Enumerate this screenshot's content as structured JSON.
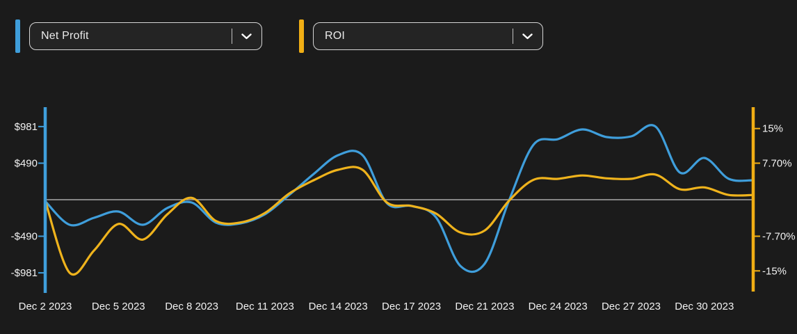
{
  "app": {
    "background": "#1b1b1b"
  },
  "selectors": [
    {
      "label": "Net Profit",
      "accent_color": "#3f9edb"
    },
    {
      "label": "ROI",
      "accent_color": "#f0ae14"
    }
  ],
  "chart_data": {
    "type": "line",
    "x_labels": [
      "Dec 2 2023",
      "Dec 5 2023",
      "Dec 8 2023",
      "Dec 11 2023",
      "Dec 14 2023",
      "Dec 17 2023",
      "Dec 21 2023",
      "Dec 24 2023",
      "Dec 27 2023",
      "Dec 30 2023"
    ],
    "x_label_indices": [
      0,
      3,
      6,
      9,
      12,
      15,
      18,
      21,
      24,
      27
    ],
    "series": [
      {
        "name": "Net Profit",
        "axis": "left",
        "color": "#3f9edb",
        "values": [
          -20,
          -336,
          -243,
          -159,
          -336,
          -112,
          -37,
          -308,
          -317,
          -196,
          65,
          345,
          597,
          597,
          -47,
          -84,
          -233,
          -887,
          -859,
          -9,
          737,
          812,
          943,
          840,
          849,
          981,
          364,
          560,
          280,
          261
        ]
      },
      {
        "name": "ROI",
        "axis": "right",
        "color": "#efb31c",
        "values": [
          -0.2,
          -15.4,
          -10.7,
          -5.1,
          -8.4,
          -3.1,
          0.4,
          -4.5,
          -4.8,
          -2.8,
          1.3,
          4.1,
          6.3,
          6.3,
          -0.6,
          -1.3,
          -2.9,
          -6.9,
          -6.5,
          -0.2,
          4.2,
          4.4,
          5.1,
          4.5,
          4.4,
          5.3,
          2.2,
          2.6,
          1.0,
          1.0
        ]
      }
    ],
    "left_axis": {
      "color": "#3f9edb",
      "unit": "$",
      "ticks": [
        981,
        490,
        -490,
        -981
      ],
      "tick_labels": [
        "$981",
        "$490",
        "-$490",
        "-$981"
      ],
      "range": [
        -1230,
        1230
      ]
    },
    "right_axis": {
      "color": "#f0ae14",
      "unit": "%",
      "ticks": [
        15,
        7.7,
        -7.7,
        -15
      ],
      "tick_labels": [
        "15%",
        "7.70%",
        "-7.70%",
        "-15%"
      ],
      "range": [
        -19.3,
        19.3
      ]
    },
    "zero_line": true,
    "zero_line_color": "#a9a9a9",
    "text_color": "#f2f2f2",
    "grid": false,
    "legend_position": "none"
  }
}
